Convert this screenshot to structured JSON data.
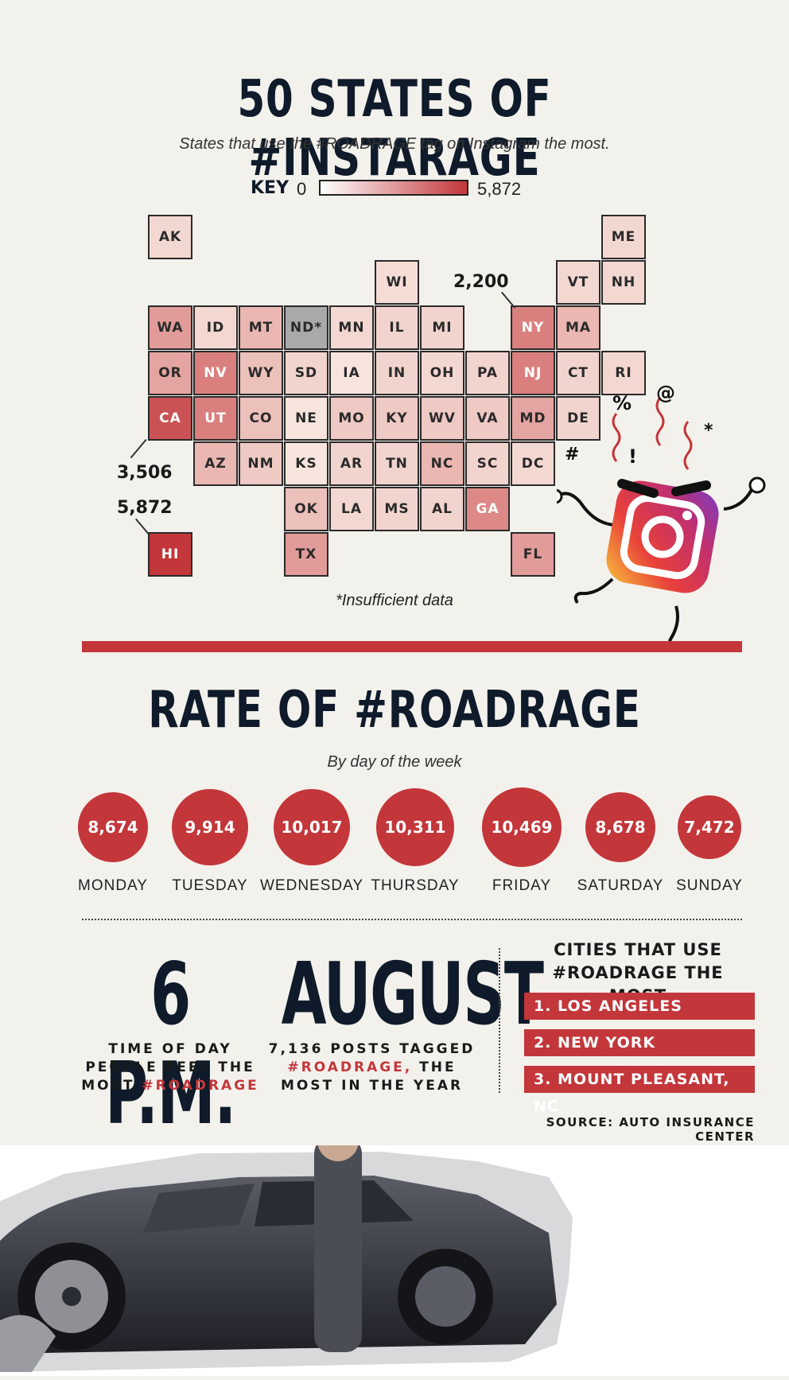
{
  "header": {
    "title": "50 STATES OF #INSTARAGE",
    "subtitle": "States that use the #ROADRAGE tag on Instagram the most."
  },
  "key": {
    "label": "KEY",
    "min": "0",
    "max": "5,872"
  },
  "map": {
    "tiles": [
      {
        "abbr": "AK",
        "col": 0,
        "row": 0,
        "intensity": 0.12
      },
      {
        "abbr": "ME",
        "col": 10,
        "row": 0,
        "intensity": 0.12
      },
      {
        "abbr": "WI",
        "col": 5,
        "row": 1,
        "intensity": 0.1
      },
      {
        "abbr": "VT",
        "col": 9,
        "row": 1,
        "intensity": 0.12
      },
      {
        "abbr": "NH",
        "col": 10,
        "row": 1,
        "intensity": 0.12
      },
      {
        "abbr": "WA",
        "col": 0,
        "row": 2,
        "intensity": 0.45
      },
      {
        "abbr": "ID",
        "col": 1,
        "row": 2,
        "intensity": 0.12
      },
      {
        "abbr": "MT",
        "col": 2,
        "row": 2,
        "intensity": 0.3
      },
      {
        "abbr": "ND*",
        "col": 3,
        "row": 2,
        "intensity": -1
      },
      {
        "abbr": "MN",
        "col": 4,
        "row": 2,
        "intensity": 0.12
      },
      {
        "abbr": "IL",
        "col": 5,
        "row": 2,
        "intensity": 0.14
      },
      {
        "abbr": "MI",
        "col": 6,
        "row": 2,
        "intensity": 0.14
      },
      {
        "abbr": "NY",
        "col": 8,
        "row": 2,
        "intensity": 0.6
      },
      {
        "abbr": "MA",
        "col": 9,
        "row": 2,
        "intensity": 0.3
      },
      {
        "abbr": "OR",
        "col": 0,
        "row": 3,
        "intensity": 0.4
      },
      {
        "abbr": "NV",
        "col": 1,
        "row": 3,
        "intensity": 0.6
      },
      {
        "abbr": "WY",
        "col": 2,
        "row": 3,
        "intensity": 0.25
      },
      {
        "abbr": "SD",
        "col": 3,
        "row": 3,
        "intensity": 0.14
      },
      {
        "abbr": "IA",
        "col": 4,
        "row": 3,
        "intensity": 0.05
      },
      {
        "abbr": "IN",
        "col": 5,
        "row": 3,
        "intensity": 0.14
      },
      {
        "abbr": "OH",
        "col": 6,
        "row": 3,
        "intensity": 0.12
      },
      {
        "abbr": "PA",
        "col": 7,
        "row": 3,
        "intensity": 0.14
      },
      {
        "abbr": "NJ",
        "col": 8,
        "row": 3,
        "intensity": 0.6
      },
      {
        "abbr": "CT",
        "col": 9,
        "row": 3,
        "intensity": 0.14
      },
      {
        "abbr": "RI",
        "col": 10,
        "row": 3,
        "intensity": 0.12
      },
      {
        "abbr": "CA",
        "col": 0,
        "row": 4,
        "intensity": 0.85
      },
      {
        "abbr": "UT",
        "col": 1,
        "row": 4,
        "intensity": 0.6
      },
      {
        "abbr": "CO",
        "col": 2,
        "row": 4,
        "intensity": 0.25
      },
      {
        "abbr": "NE",
        "col": 3,
        "row": 4,
        "intensity": 0.05
      },
      {
        "abbr": "MO",
        "col": 4,
        "row": 4,
        "intensity": 0.2
      },
      {
        "abbr": "KY",
        "col": 5,
        "row": 4,
        "intensity": 0.2
      },
      {
        "abbr": "WV",
        "col": 6,
        "row": 4,
        "intensity": 0.2
      },
      {
        "abbr": "VA",
        "col": 7,
        "row": 4,
        "intensity": 0.2
      },
      {
        "abbr": "MD",
        "col": 8,
        "row": 4,
        "intensity": 0.4
      },
      {
        "abbr": "DE",
        "col": 9,
        "row": 4,
        "intensity": 0.14
      },
      {
        "abbr": "AZ",
        "col": 1,
        "row": 5,
        "intensity": 0.3
      },
      {
        "abbr": "NM",
        "col": 2,
        "row": 5,
        "intensity": 0.2
      },
      {
        "abbr": "KS",
        "col": 3,
        "row": 5,
        "intensity": 0.05
      },
      {
        "abbr": "AR",
        "col": 4,
        "row": 5,
        "intensity": 0.14
      },
      {
        "abbr": "TN",
        "col": 5,
        "row": 5,
        "intensity": 0.14
      },
      {
        "abbr": "NC",
        "col": 6,
        "row": 5,
        "intensity": 0.3
      },
      {
        "abbr": "SC",
        "col": 7,
        "row": 5,
        "intensity": 0.14
      },
      {
        "abbr": "DC",
        "col": 8,
        "row": 5,
        "intensity": 0.12
      },
      {
        "abbr": "OK",
        "col": 3,
        "row": 6,
        "intensity": 0.25
      },
      {
        "abbr": "LA",
        "col": 4,
        "row": 6,
        "intensity": 0.12
      },
      {
        "abbr": "MS",
        "col": 5,
        "row": 6,
        "intensity": 0.14
      },
      {
        "abbr": "AL",
        "col": 6,
        "row": 6,
        "intensity": 0.14
      },
      {
        "abbr": "GA",
        "col": 7,
        "row": 6,
        "intensity": 0.55
      },
      {
        "abbr": "HI",
        "col": 0,
        "row": 7,
        "intensity": 1.0
      },
      {
        "abbr": "TX",
        "col": 3,
        "row": 7,
        "intensity": 0.45
      },
      {
        "abbr": "FL",
        "col": 8,
        "row": 7,
        "intensity": 0.45
      }
    ],
    "callouts": {
      "ny": "2,200",
      "ca": "3,506",
      "hi": "5,872"
    },
    "footnote": "*Insufficient data"
  },
  "colors": {
    "accent": "#c3363a",
    "navy": "#0f1b2a",
    "background": "#f3f1ec",
    "na": "#a9a9a9"
  },
  "rate": {
    "title": "RATE OF #ROADRAGE",
    "subtitle": "By day of the week",
    "days": [
      {
        "day": "MONDAY",
        "value": "8,674",
        "n": 8674
      },
      {
        "day": "TUESDAY",
        "value": "9,914",
        "n": 9914
      },
      {
        "day": "WEDNESDAY",
        "value": "10,017",
        "n": 10017
      },
      {
        "day": "THURSDAY",
        "value": "10,311",
        "n": 10311
      },
      {
        "day": "FRIDAY",
        "value": "10,469",
        "n": 10469
      },
      {
        "day": "SATURDAY",
        "value": "8,678",
        "n": 8678
      },
      {
        "day": "SUNDAY",
        "value": "7,472",
        "n": 7472
      }
    ]
  },
  "stats": {
    "time": {
      "big": "6 P.M.",
      "line1": "TIME OF DAY",
      "line2": "PEOPLE FEEL THE",
      "line3a": "MOST ",
      "line3b": "#ROADRAGE"
    },
    "month": {
      "big": "AUGUST",
      "line1": "7,136 POSTS TAGGED",
      "line2a": "#ROADRAGE,",
      "line2b": " THE",
      "line3": "MOST IN THE YEAR"
    }
  },
  "cities": {
    "heading1": "CITIES THAT USE",
    "heading2": "#ROADRAGE THE MOST",
    "items": [
      "1. LOS ANGELES",
      "2. NEW YORK",
      "3. MOUNT PLEASANT, NC"
    ]
  },
  "source": "SOURCE: AUTO INSURANCE CENTER",
  "icons": {
    "mascot": "angry-instagram-icon",
    "car": "wrecked-car-photo"
  },
  "mascot_symbols": [
    "%",
    "@",
    "#",
    "!",
    "*"
  ]
}
